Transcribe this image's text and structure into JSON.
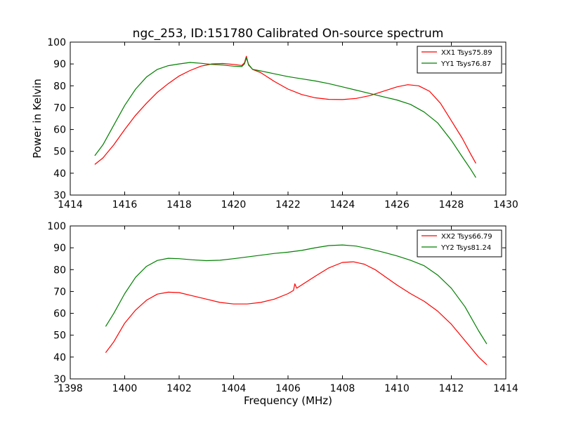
{
  "chart_data": [
    {
      "type": "line",
      "title": "ngc_253, ID:151780 Calibrated On-source spectrum",
      "xlabel": "",
      "ylabel": "Power in Kelvin",
      "xlim": [
        1414,
        1430
      ],
      "ylim": [
        30,
        100
      ],
      "xticks": [
        1414,
        1416,
        1418,
        1420,
        1422,
        1424,
        1426,
        1428,
        1430
      ],
      "yticks": [
        30,
        40,
        50,
        60,
        70,
        80,
        90,
        100
      ],
      "legend_position": "top-right",
      "series": [
        {
          "name": "XX1 Tsys75.89",
          "color": "#ff0000",
          "points": [
            [
              1414.9,
              44
            ],
            [
              1415.2,
              47
            ],
            [
              1415.6,
              53
            ],
            [
              1416.0,
              60
            ],
            [
              1416.4,
              66.5
            ],
            [
              1416.8,
              72
            ],
            [
              1417.2,
              77
            ],
            [
              1417.6,
              81
            ],
            [
              1418.0,
              84.5
            ],
            [
              1418.4,
              87
            ],
            [
              1418.8,
              89
            ],
            [
              1419.2,
              90
            ],
            [
              1419.6,
              90.2
            ],
            [
              1420.0,
              89.8
            ],
            [
              1420.3,
              89.3
            ],
            [
              1420.4,
              90.5
            ],
            [
              1420.47,
              93.5
            ],
            [
              1420.55,
              89.5
            ],
            [
              1420.7,
              87.5
            ],
            [
              1421.0,
              86
            ],
            [
              1421.5,
              82
            ],
            [
              1422.0,
              78.5
            ],
            [
              1422.5,
              76
            ],
            [
              1423.0,
              74.5
            ],
            [
              1423.5,
              73.8
            ],
            [
              1424.0,
              73.7
            ],
            [
              1424.5,
              74.2
            ],
            [
              1425.0,
              75.5
            ],
            [
              1425.5,
              77.5
            ],
            [
              1426.0,
              79.5
            ],
            [
              1426.4,
              80.5
            ],
            [
              1426.8,
              80
            ],
            [
              1427.2,
              77.5
            ],
            [
              1427.6,
              72
            ],
            [
              1428.0,
              64
            ],
            [
              1428.4,
              56
            ],
            [
              1428.7,
              49
            ],
            [
              1428.9,
              44.5
            ]
          ]
        },
        {
          "name": "YY1 Tsys76.87",
          "color": "#007f00",
          "points": [
            [
              1414.9,
              48
            ],
            [
              1415.2,
              53
            ],
            [
              1415.6,
              62
            ],
            [
              1416.0,
              71
            ],
            [
              1416.4,
              78.5
            ],
            [
              1416.8,
              84
            ],
            [
              1417.2,
              87.5
            ],
            [
              1417.6,
              89.2
            ],
            [
              1418.0,
              90
            ],
            [
              1418.4,
              90.7
            ],
            [
              1418.8,
              90.3
            ],
            [
              1419.2,
              89.8
            ],
            [
              1419.6,
              89.5
            ],
            [
              1420.0,
              89
            ],
            [
              1420.3,
              88.8
            ],
            [
              1420.4,
              90
            ],
            [
              1420.47,
              92.8
            ],
            [
              1420.55,
              89.8
            ],
            [
              1420.7,
              87.5
            ],
            [
              1421.0,
              86.8
            ],
            [
              1421.5,
              85.5
            ],
            [
              1422.0,
              84.2
            ],
            [
              1422.5,
              83.2
            ],
            [
              1423.0,
              82.2
            ],
            [
              1423.5,
              81
            ],
            [
              1424.0,
              79.5
            ],
            [
              1424.5,
              78
            ],
            [
              1425.0,
              76.5
            ],
            [
              1425.5,
              75
            ],
            [
              1426.0,
              73.5
            ],
            [
              1426.5,
              71.5
            ],
            [
              1427.0,
              68
            ],
            [
              1427.5,
              63
            ],
            [
              1428.0,
              55
            ],
            [
              1428.4,
              47.5
            ],
            [
              1428.7,
              42
            ],
            [
              1428.9,
              38
            ]
          ]
        }
      ]
    },
    {
      "type": "line",
      "title": "",
      "xlabel": "Frequency (MHz)",
      "ylabel": "",
      "xlim": [
        1398,
        1414
      ],
      "ylim": [
        30,
        100
      ],
      "xticks": [
        1398,
        1400,
        1402,
        1404,
        1406,
        1408,
        1410,
        1412,
        1414
      ],
      "yticks": [
        30,
        40,
        50,
        60,
        70,
        80,
        90,
        100
      ],
      "legend_position": "top-right",
      "series": [
        {
          "name": "XX2 Tsys66.79",
          "color": "#ff0000",
          "points": [
            [
              1399.3,
              42
            ],
            [
              1399.6,
              47
            ],
            [
              1400.0,
              55.5
            ],
            [
              1400.4,
              61.5
            ],
            [
              1400.8,
              66
            ],
            [
              1401.2,
              68.8
            ],
            [
              1401.6,
              69.7
            ],
            [
              1402.0,
              69.5
            ],
            [
              1402.5,
              68
            ],
            [
              1403.0,
              66.5
            ],
            [
              1403.5,
              65
            ],
            [
              1404.0,
              64.3
            ],
            [
              1404.5,
              64.3
            ],
            [
              1405.0,
              65
            ],
            [
              1405.5,
              66.5
            ],
            [
              1406.0,
              69
            ],
            [
              1406.2,
              70.5
            ],
            [
              1406.25,
              73.5
            ],
            [
              1406.32,
              71.5
            ],
            [
              1406.5,
              73
            ],
            [
              1407.0,
              77
            ],
            [
              1407.5,
              80.8
            ],
            [
              1408.0,
              83.3
            ],
            [
              1408.4,
              83.6
            ],
            [
              1408.8,
              82.5
            ],
            [
              1409.2,
              80
            ],
            [
              1409.6,
              76.5
            ],
            [
              1410.0,
              73
            ],
            [
              1410.5,
              69
            ],
            [
              1411.0,
              65.5
            ],
            [
              1411.5,
              61
            ],
            [
              1412.0,
              55
            ],
            [
              1412.5,
              47.5
            ],
            [
              1413.0,
              40
            ],
            [
              1413.3,
              36.5
            ]
          ]
        },
        {
          "name": "YY2 Tsys81.24",
          "color": "#007f00",
          "points": [
            [
              1399.3,
              54
            ],
            [
              1399.6,
              60
            ],
            [
              1400.0,
              69
            ],
            [
              1400.4,
              76.5
            ],
            [
              1400.8,
              81.5
            ],
            [
              1401.2,
              84.2
            ],
            [
              1401.6,
              85.2
            ],
            [
              1402.0,
              85
            ],
            [
              1402.5,
              84.5
            ],
            [
              1403.0,
              84.1
            ],
            [
              1403.5,
              84.3
            ],
            [
              1404.0,
              85
            ],
            [
              1404.5,
              85.8
            ],
            [
              1405.0,
              86.6
            ],
            [
              1405.5,
              87.4
            ],
            [
              1406.0,
              88
            ],
            [
              1406.5,
              88.8
            ],
            [
              1407.0,
              90
            ],
            [
              1407.5,
              91
            ],
            [
              1408.0,
              91.3
            ],
            [
              1408.5,
              90.8
            ],
            [
              1409.0,
              89.5
            ],
            [
              1409.5,
              88
            ],
            [
              1410.0,
              86.3
            ],
            [
              1410.5,
              84.3
            ],
            [
              1411.0,
              81.8
            ],
            [
              1411.5,
              77.5
            ],
            [
              1412.0,
              71.5
            ],
            [
              1412.5,
              63
            ],
            [
              1413.0,
              52
            ],
            [
              1413.3,
              46
            ]
          ]
        }
      ]
    }
  ]
}
